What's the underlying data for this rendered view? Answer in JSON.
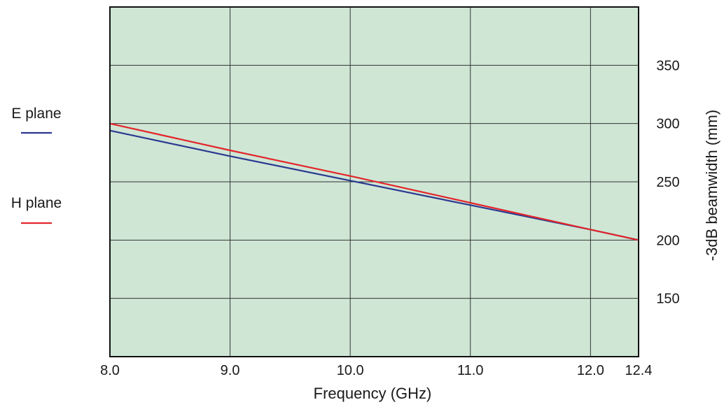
{
  "chart_data": {
    "type": "line",
    "title": "",
    "xlabel": "Frequency (GHz)",
    "ylabel": "-3dB beamwidth (mm)",
    "xlim": [
      8.0,
      12.4
    ],
    "ylim": [
      100,
      400
    ],
    "x_ticks": [
      8.0,
      9.0,
      10.0,
      11.0,
      12.0,
      12.4
    ],
    "x_tick_labels": [
      "8.0",
      "9.0",
      "10.0",
      "11.0",
      "12.0",
      "12.4"
    ],
    "y_ticks": [
      150,
      200,
      250,
      300,
      350
    ],
    "y_tick_labels": [
      "150",
      "200",
      "250",
      "300",
      "350"
    ],
    "y_axis_side": "right",
    "grid": true,
    "plot_background": "#cfe6d5",
    "legend_position": "left",
    "series": [
      {
        "name": "E plane",
        "color": "#2b3990",
        "x": [
          8.0,
          9.0,
          10.0,
          11.0,
          12.0,
          12.4
        ],
        "y": [
          294,
          272,
          251,
          230,
          209,
          200
        ]
      },
      {
        "name": "H plane",
        "color": "#e3262b",
        "x": [
          8.0,
          9.0,
          10.0,
          11.0,
          12.0,
          12.4
        ],
        "y": [
          300,
          277,
          255,
          232,
          209,
          200
        ]
      }
    ]
  }
}
